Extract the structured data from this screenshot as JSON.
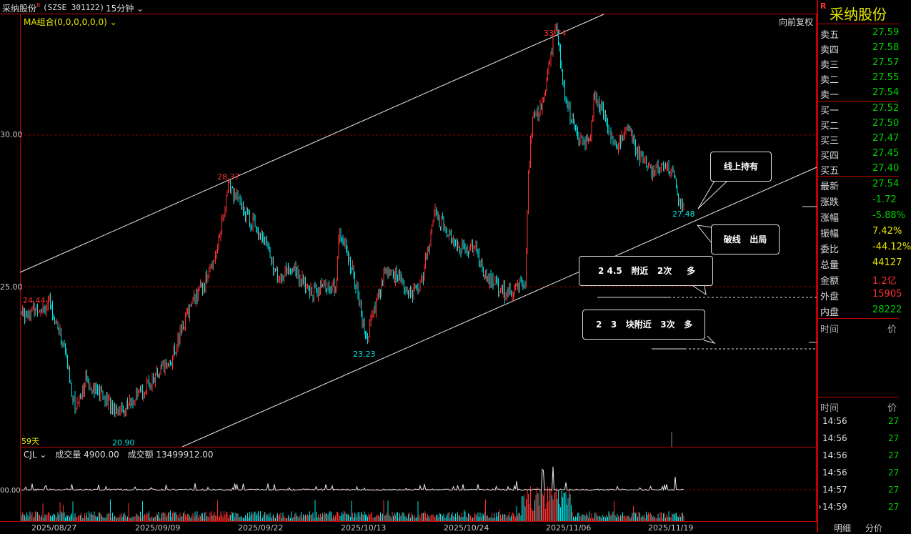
{
  "title": {
    "name": "采纳股份",
    "mark": "R",
    "code": "(SZSE 301122)",
    "period": "15分钟"
  },
  "indicator": {
    "ma_label": "MA组合(0,0,0,0,0,0)",
    "restore_label": "向前复权",
    "days_label": "59天"
  },
  "y_axis": {
    "ticks": [
      "30.00",
      "25.00"
    ]
  },
  "price_labels": {
    "p1": "24.44",
    "p2": "20.90",
    "p3": "28.37",
    "p4": "23.23",
    "p5": "33.74",
    "p6": "27.48"
  },
  "notes": {
    "hold": "线上持有",
    "break": "破线   出局",
    "level1": "2 4.5   附近   2次     多",
    "level2": "2   3   块附近   3次   多"
  },
  "volume": {
    "label": "CJL",
    "vol_text": "成交量 4900.00",
    "amount_text": "成交额 13499912.00",
    "axis_tick": "00.00"
  },
  "dates": [
    "2025/08/27",
    "2025/09/09",
    "2025/09/22",
    "2025/10/13",
    "2025/10/24",
    "2025/11/06",
    "2025/11/19"
  ],
  "right_panel": {
    "stock_name": "采纳股份",
    "mark": "R",
    "sell": [
      {
        "label": "卖五",
        "value": "27.59"
      },
      {
        "label": "卖四",
        "value": "27.58"
      },
      {
        "label": "卖三",
        "value": "27.57"
      },
      {
        "label": "卖二",
        "value": "27.55"
      },
      {
        "label": "卖一",
        "value": "27.54"
      }
    ],
    "buy": [
      {
        "label": "买一",
        "value": "27.52"
      },
      {
        "label": "买二",
        "value": "27.50"
      },
      {
        "label": "买三",
        "value": "27.47"
      },
      {
        "label": "买四",
        "value": "27.45"
      },
      {
        "label": "买五",
        "value": "27.40"
      }
    ],
    "stats": [
      {
        "label": "最新",
        "value": "27.54",
        "color": "#00d000"
      },
      {
        "label": "涨跌",
        "value": "-1.72",
        "color": "#00d000"
      },
      {
        "label": "涨幅",
        "value": "-5.88%",
        "color": "#00d000"
      },
      {
        "label": "振幅",
        "value": "7.42%",
        "color": "#e6e600"
      },
      {
        "label": "委比",
        "value": "-44.12%",
        "color": "#e6e600"
      },
      {
        "label": "总量",
        "value": "44127",
        "color": "#e6e600"
      },
      {
        "label": "金额",
        "value": "1.2亿",
        "color": "#ff3030"
      },
      {
        "label": "外盘",
        "value": "15905",
        "color": "#ff3030"
      },
      {
        "label": "内盘",
        "value": "28222",
        "color": "#00d000"
      }
    ],
    "time_header": "时间",
    "price_header": "价",
    "ticks": [
      {
        "time": "14:56",
        "price": "27"
      },
      {
        "time": "14:56",
        "price": "27"
      },
      {
        "time": "14:56",
        "price": "27"
      },
      {
        "time": "14:56",
        "price": "27"
      },
      {
        "time": "14:57",
        "price": "27"
      },
      {
        "time": "14:59",
        "price": "27"
      }
    ],
    "tabs": [
      "明细",
      "分价"
    ]
  },
  "colors": {
    "up": "#ff3030",
    "down": "#00e5e5",
    "frame": "#c00000",
    "channel": "#e8e8e8"
  }
}
